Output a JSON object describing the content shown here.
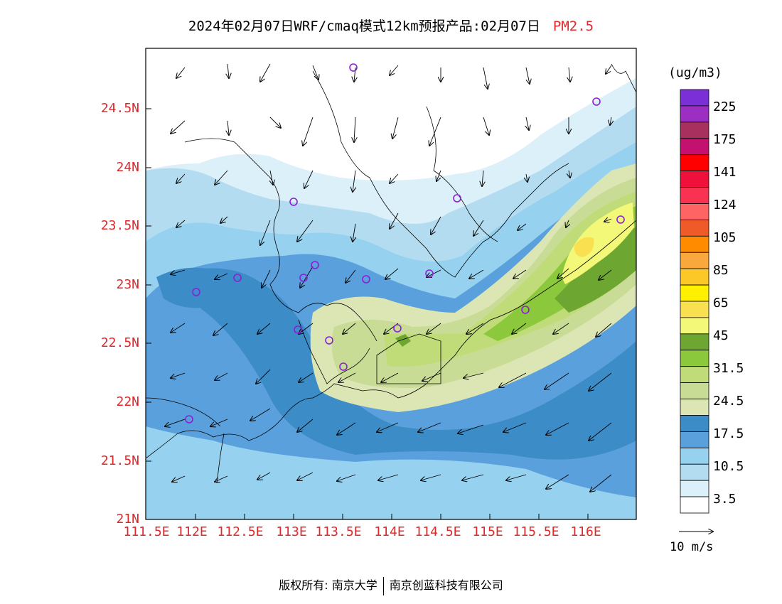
{
  "title": {
    "main": "2024年02月07日WRF/cmaq模式12km预报产品:02月07日",
    "pollutant": "PM2.5"
  },
  "axes": {
    "x_ticks": [
      "111.5E",
      "112E",
      "112.5E",
      "113E",
      "113.5E",
      "114E",
      "114.5E",
      "115E",
      "115.5E",
      "116E"
    ],
    "y_ticks": [
      "24.5N",
      "24N",
      "23.5N",
      "23N",
      "22.5N",
      "22N",
      "21.5N",
      "21N"
    ],
    "tick_color": "#e0282a"
  },
  "colorbar": {
    "unit": "(ug/m3)",
    "labels": [
      "225",
      "175",
      "141",
      "124",
      "105",
      "85",
      "65",
      "45",
      "31.5",
      "24.5",
      "17.5",
      "10.5",
      "3.5"
    ],
    "colors": [
      "#7b2fd6",
      "#9a2fc2",
      "#a7305f",
      "#c4106e",
      "#ff0000",
      "#f0103c",
      "#f83250",
      "#ff6464",
      "#f05a28",
      "#ff8c00",
      "#f8a83c",
      "#fcc828",
      "#fff000",
      "#f8e050",
      "#f4f878",
      "#6ea632",
      "#8cc83c",
      "#c0dc78",
      "#c8dc96",
      "#dce6b4",
      "#3c8cc8",
      "#5aa0dc",
      "#96d2f0",
      "#b4dcf0",
      "#dcf0fa",
      "#ffffff"
    ]
  },
  "wind_reference": "10 m/s",
  "footer": {
    "left": "版权所有: 南京大学",
    "right": "南京创蓝科技有限公司"
  }
}
